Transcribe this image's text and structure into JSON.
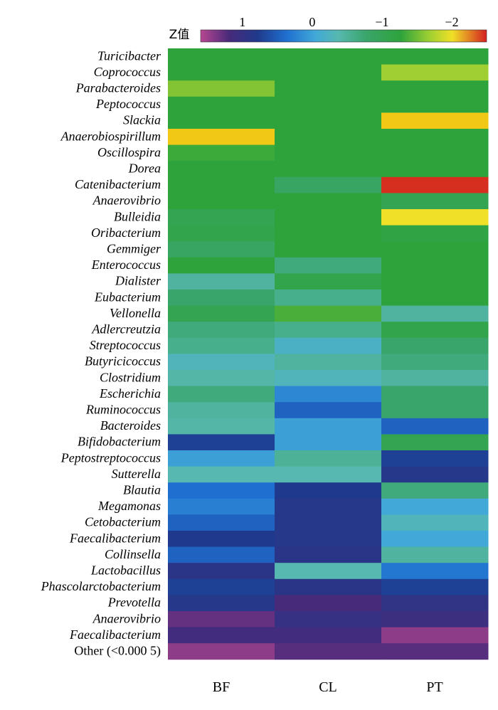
{
  "chart_data": {
    "type": "heatmap",
    "colorbar": {
      "title": "Z值",
      "ticks": [
        "1",
        "0",
        "−1",
        "−2"
      ],
      "tick_values": [
        1,
        0,
        -1,
        -2
      ],
      "range": [
        1.6,
        -2.5
      ]
    },
    "columns": [
      "BF",
      "CL",
      "PT"
    ],
    "rows": [
      {
        "name": "Turicibacter",
        "italic": true,
        "values": [
          -1.0,
          -1.0,
          -1.0
        ]
      },
      {
        "name": "Coprococcus",
        "italic": true,
        "values": [
          -1.0,
          -1.0,
          -1.4
        ]
      },
      {
        "name": "Parabacteroides",
        "italic": true,
        "values": [
          -1.3,
          -1.0,
          -1.0
        ]
      },
      {
        "name": "Peptococcus",
        "italic": true,
        "values": [
          -1.0,
          -1.0,
          -1.0
        ]
      },
      {
        "name": "Slackia",
        "italic": true,
        "values": [
          -1.0,
          -1.0,
          -1.95
        ]
      },
      {
        "name": "Anaerobiospirillum",
        "italic": true,
        "values": [
          -1.95,
          -1.0,
          -1.0
        ]
      },
      {
        "name": "Oscillospira",
        "italic": true,
        "values": [
          -1.05,
          -1.0,
          -1.0
        ]
      },
      {
        "name": "Dorea",
        "italic": true,
        "values": [
          -1.0,
          -1.0,
          -1.0
        ]
      },
      {
        "name": "Catenibacterium",
        "italic": true,
        "values": [
          -1.0,
          -0.75,
          -2.45
        ]
      },
      {
        "name": "Anaerovibrio",
        "italic": true,
        "values": [
          -1.0,
          -1.0,
          -0.85
        ]
      },
      {
        "name": "Bulleidia",
        "italic": true,
        "values": [
          -0.85,
          -1.0,
          -1.75
        ]
      },
      {
        "name": "Oribacterium",
        "italic": true,
        "values": [
          -0.9,
          -1.0,
          -0.95
        ]
      },
      {
        "name": "Gemmiger",
        "italic": true,
        "values": [
          -0.75,
          -1.0,
          -1.0
        ]
      },
      {
        "name": "Enterococcus",
        "italic": true,
        "values": [
          -1.0,
          -0.6,
          -1.0
        ]
      },
      {
        "name": "Dialister",
        "italic": true,
        "values": [
          -0.4,
          -0.9,
          -1.0
        ]
      },
      {
        "name": "Eubacterium",
        "italic": true,
        "values": [
          -0.7,
          -0.5,
          -1.0
        ]
      },
      {
        "name": "Vellonella",
        "italic": true,
        "values": [
          -0.85,
          -1.1,
          -0.4
        ]
      },
      {
        "name": "Adlercreutzia",
        "italic": true,
        "values": [
          -0.6,
          -0.5,
          -0.9
        ]
      },
      {
        "name": "Streptococcus",
        "italic": true,
        "values": [
          -0.5,
          -0.1,
          -0.7
        ]
      },
      {
        "name": "Butyricicoccus",
        "italic": true,
        "values": [
          -0.2,
          -0.4,
          -0.6
        ]
      },
      {
        "name": "Clostridium",
        "italic": true,
        "values": [
          -0.35,
          -0.2,
          -0.4
        ]
      },
      {
        "name": "Escherichia",
        "italic": true,
        "values": [
          -0.6,
          0.3,
          -0.7
        ]
      },
      {
        "name": "Ruminococcus",
        "italic": true,
        "values": [
          -0.4,
          0.55,
          -0.7
        ]
      },
      {
        "name": "Bacteroides",
        "italic": true,
        "values": [
          -0.35,
          0.15,
          0.55
        ]
      },
      {
        "name": "Bifidobacterium",
        "italic": true,
        "values": [
          0.8,
          0.15,
          -0.85
        ]
      },
      {
        "name": "Peptostreptococcus",
        "italic": true,
        "values": [
          0.15,
          -0.45,
          0.8
        ]
      },
      {
        "name": "Sutterella",
        "italic": true,
        "values": [
          -0.3,
          -0.3,
          0.9
        ]
      },
      {
        "name": "Blautia",
        "italic": true,
        "values": [
          0.45,
          0.85,
          -0.6
        ]
      },
      {
        "name": "Megamonas",
        "italic": true,
        "values": [
          0.35,
          0.9,
          0.1
        ]
      },
      {
        "name": "Cetobacterium",
        "italic": true,
        "values": [
          0.55,
          0.9,
          -0.2
        ]
      },
      {
        "name": "Faecalibacterium",
        "italic": true,
        "values": [
          0.85,
          0.9,
          0.1
        ]
      },
      {
        "name": "Collinsella",
        "italic": true,
        "values": [
          0.55,
          0.95,
          -0.4
        ]
      },
      {
        "name": "Lactobacillus",
        "italic": true,
        "values": [
          0.95,
          -0.3,
          0.4
        ]
      },
      {
        "name": "Phascolarctobacterium",
        "italic": true,
        "values": [
          0.8,
          0.95,
          0.8
        ]
      },
      {
        "name": "Prevotella",
        "italic": true,
        "values": [
          0.9,
          1.2,
          1.0
        ]
      },
      {
        "name": "Anaerovibrio",
        "italic": true,
        "values": [
          1.3,
          1.05,
          1.1
        ]
      },
      {
        "name": "Faecalibacterium",
        "italic": true,
        "values": [
          1.15,
          1.15,
          1.45
        ]
      },
      {
        "name": "Other (<0.000 5)",
        "italic": false,
        "values": [
          1.45,
          1.25,
          1.25
        ]
      }
    ]
  }
}
